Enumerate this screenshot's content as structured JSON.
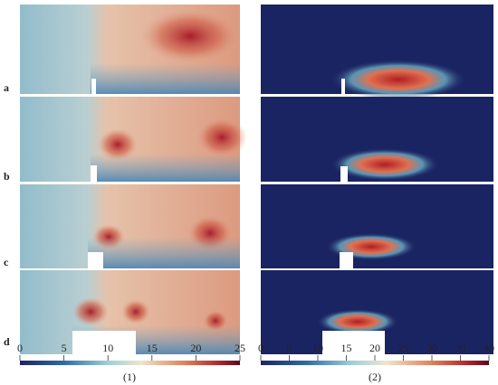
{
  "panels": [
    {
      "label": "a"
    },
    {
      "label": "b"
    },
    {
      "label": "c"
    },
    {
      "label": "d"
    }
  ],
  "colorbars": [
    {
      "lim": [
        0,
        25
      ],
      "ticks": [
        0,
        5,
        10,
        15,
        20,
        25
      ],
      "caption": "(1)"
    },
    {
      "lim": [
        0,
        40
      ],
      "ticks": [
        0,
        5,
        10,
        15,
        20,
        25,
        30,
        35,
        40
      ],
      "caption": "(2)"
    }
  ]
}
